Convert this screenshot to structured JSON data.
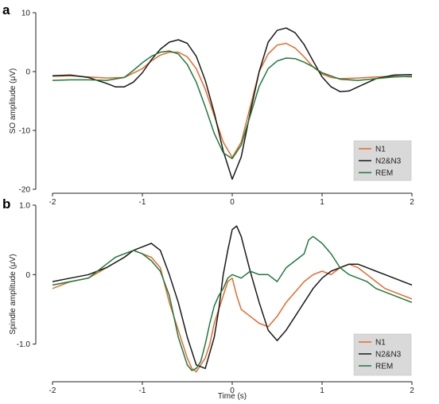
{
  "chart_data": [
    {
      "panel": "a",
      "type": "line",
      "ylabel": "SO amplitude (μV)",
      "xlabel": "",
      "xlim": [
        -2,
        2
      ],
      "ylim": [
        -20,
        10
      ],
      "xticks": [
        -2,
        -1,
        0,
        1,
        2
      ],
      "xtick_labels": [
        "-2",
        "-1",
        "0",
        "1",
        "2"
      ],
      "yticks": [
        10,
        0,
        -10,
        -20
      ],
      "ytick_labels": [
        "10",
        "0",
        "-10",
        "-20"
      ],
      "legend": "bottom-right",
      "grid": false,
      "series": [
        {
          "name": "N1",
          "color": "#e8692a",
          "x": [
            -2.0,
            -1.8,
            -1.6,
            -1.4,
            -1.2,
            -1.0,
            -0.9,
            -0.8,
            -0.7,
            -0.6,
            -0.5,
            -0.4,
            -0.3,
            -0.2,
            -0.1,
            0.0,
            0.1,
            0.2,
            0.3,
            0.4,
            0.5,
            0.6,
            0.7,
            0.8,
            0.9,
            1.0,
            1.1,
            1.2,
            1.4,
            1.6,
            1.8,
            2.0
          ],
          "y": [
            -0.8,
            -0.7,
            -0.9,
            -1.1,
            -1.0,
            0.5,
            1.8,
            2.8,
            3.3,
            3.3,
            2.5,
            0.5,
            -3.0,
            -7.5,
            -12.0,
            -14.6,
            -12.0,
            -6.0,
            0.0,
            3.0,
            4.5,
            4.8,
            4.0,
            2.5,
            0.8,
            -0.4,
            -1.0,
            -1.2,
            -1.1,
            -0.9,
            -0.8,
            -0.9
          ]
        },
        {
          "name": "N2&N3",
          "color": "#1a1a1a",
          "x": [
            -2.0,
            -1.8,
            -1.6,
            -1.4,
            -1.3,
            -1.2,
            -1.1,
            -1.0,
            -0.9,
            -0.8,
            -0.7,
            -0.6,
            -0.5,
            -0.4,
            -0.3,
            -0.2,
            -0.1,
            0.0,
            0.1,
            0.2,
            0.3,
            0.4,
            0.5,
            0.6,
            0.7,
            0.8,
            0.9,
            1.0,
            1.1,
            1.2,
            1.3,
            1.4,
            1.6,
            1.8,
            2.0
          ],
          "y": [
            -0.7,
            -0.6,
            -1.0,
            -2.0,
            -2.6,
            -2.6,
            -1.8,
            -0.2,
            2.0,
            3.8,
            5.0,
            5.4,
            4.8,
            2.6,
            -1.5,
            -7.0,
            -13.5,
            -18.3,
            -14.5,
            -7.0,
            0.0,
            5.0,
            7.0,
            7.4,
            6.6,
            4.6,
            1.8,
            -0.9,
            -2.6,
            -3.4,
            -3.3,
            -2.6,
            -1.2,
            -0.6,
            -0.5
          ]
        },
        {
          "name": "REM",
          "color": "#1d7a3c",
          "x": [
            -2.0,
            -1.8,
            -1.6,
            -1.4,
            -1.2,
            -1.1,
            -1.0,
            -0.9,
            -0.8,
            -0.7,
            -0.6,
            -0.5,
            -0.4,
            -0.3,
            -0.2,
            -0.1,
            0.0,
            0.1,
            0.2,
            0.3,
            0.4,
            0.5,
            0.6,
            0.7,
            0.8,
            0.9,
            1.0,
            1.2,
            1.4,
            1.6,
            1.8,
            2.0
          ],
          "y": [
            -1.5,
            -1.4,
            -1.4,
            -1.5,
            -1.0,
            0.2,
            1.5,
            2.6,
            3.3,
            3.5,
            3.0,
            1.2,
            -1.8,
            -6.0,
            -10.5,
            -13.8,
            -14.8,
            -12.5,
            -7.5,
            -2.5,
            0.5,
            1.8,
            2.3,
            2.2,
            1.6,
            0.8,
            -0.2,
            -1.3,
            -1.5,
            -1.2,
            -0.9,
            -0.8
          ]
        }
      ]
    },
    {
      "panel": "b",
      "type": "line",
      "ylabel": "Spindle amplitude (μV)",
      "xlabel": "Time (s)",
      "xlim": [
        -2,
        2
      ],
      "ylim": [
        -1.45,
        1.0
      ],
      "xticks": [
        -2,
        -1,
        0,
        1,
        2
      ],
      "xtick_labels": [
        "-2",
        "-1",
        "0",
        "1",
        "2"
      ],
      "yticks": [
        1.0,
        0,
        -1.0
      ],
      "ytick_labels": [
        "1.0",
        "0",
        "-1.0"
      ],
      "legend": "bottom-right",
      "grid": false,
      "series": [
        {
          "name": "N1",
          "color": "#e8692a",
          "x": [
            -2.0,
            -1.8,
            -1.6,
            -1.4,
            -1.2,
            -1.1,
            -1.0,
            -0.9,
            -0.8,
            -0.7,
            -0.6,
            -0.5,
            -0.45,
            -0.4,
            -0.35,
            -0.3,
            -0.25,
            -0.2,
            -0.15,
            -0.1,
            -0.05,
            0.0,
            0.05,
            0.1,
            0.2,
            0.3,
            0.4,
            0.5,
            0.6,
            0.7,
            0.8,
            0.9,
            1.0,
            1.1,
            1.2,
            1.3,
            1.4,
            1.5,
            1.6,
            1.7,
            1.8,
            1.9,
            2.0
          ],
          "y": [
            -0.2,
            -0.1,
            -0.05,
            0.1,
            0.25,
            0.35,
            0.3,
            0.25,
            0.1,
            -0.4,
            -0.8,
            -1.2,
            -1.35,
            -1.4,
            -1.3,
            -1.2,
            -1.0,
            -0.7,
            -0.5,
            -0.3,
            -0.1,
            -0.05,
            -0.3,
            -0.5,
            -0.6,
            -0.7,
            -0.75,
            -0.6,
            -0.4,
            -0.25,
            -0.1,
            0.0,
            0.05,
            0.0,
            0.1,
            0.15,
            0.1,
            0.0,
            -0.1,
            -0.2,
            -0.25,
            -0.3,
            -0.35
          ]
        },
        {
          "name": "N2&N3",
          "color": "#1a1a1a",
          "x": [
            -2.0,
            -1.8,
            -1.6,
            -1.4,
            -1.2,
            -1.1,
            -1.0,
            -0.9,
            -0.8,
            -0.7,
            -0.6,
            -0.5,
            -0.4,
            -0.3,
            -0.2,
            -0.15,
            -0.1,
            -0.05,
            0.0,
            0.05,
            0.1,
            0.15,
            0.2,
            0.3,
            0.4,
            0.5,
            0.6,
            0.7,
            0.8,
            0.9,
            1.0,
            1.1,
            1.2,
            1.3,
            1.4,
            1.5,
            1.6,
            1.7,
            1.8,
            1.9,
            2.0
          ],
          "y": [
            -0.1,
            -0.05,
            0.0,
            0.1,
            0.25,
            0.35,
            0.4,
            0.45,
            0.35,
            0.0,
            -0.4,
            -0.9,
            -1.3,
            -1.35,
            -0.9,
            -0.5,
            0.0,
            0.35,
            0.65,
            0.7,
            0.55,
            0.3,
            0.05,
            -0.4,
            -0.8,
            -0.95,
            -0.8,
            -0.6,
            -0.4,
            -0.2,
            -0.05,
            0.05,
            0.1,
            0.15,
            0.15,
            0.1,
            0.05,
            0.0,
            -0.05,
            -0.1,
            -0.15
          ]
        },
        {
          "name": "REM",
          "color": "#1d7a3c",
          "x": [
            -2.0,
            -1.8,
            -1.6,
            -1.4,
            -1.3,
            -1.2,
            -1.1,
            -1.0,
            -0.9,
            -0.8,
            -0.7,
            -0.6,
            -0.5,
            -0.45,
            -0.4,
            -0.35,
            -0.3,
            -0.25,
            -0.2,
            -0.15,
            -0.1,
            -0.05,
            0.0,
            0.1,
            0.2,
            0.3,
            0.4,
            0.5,
            0.6,
            0.7,
            0.8,
            0.85,
            0.9,
            1.0,
            1.1,
            1.2,
            1.3,
            1.4,
            1.5,
            1.6,
            1.7,
            1.8,
            1.9,
            2.0
          ],
          "y": [
            -0.15,
            -0.1,
            -0.05,
            0.15,
            0.25,
            0.3,
            0.35,
            0.3,
            0.2,
            0.05,
            -0.3,
            -0.9,
            -1.3,
            -1.38,
            -1.35,
            -1.25,
            -1.0,
            -0.7,
            -0.45,
            -0.3,
            -0.2,
            -0.05,
            0.0,
            -0.05,
            0.05,
            0.0,
            0.0,
            -0.1,
            0.1,
            0.2,
            0.3,
            0.5,
            0.55,
            0.45,
            0.3,
            0.1,
            0.0,
            -0.05,
            -0.1,
            -0.2,
            -0.25,
            -0.3,
            -0.35,
            -0.4
          ]
        }
      ]
    }
  ]
}
